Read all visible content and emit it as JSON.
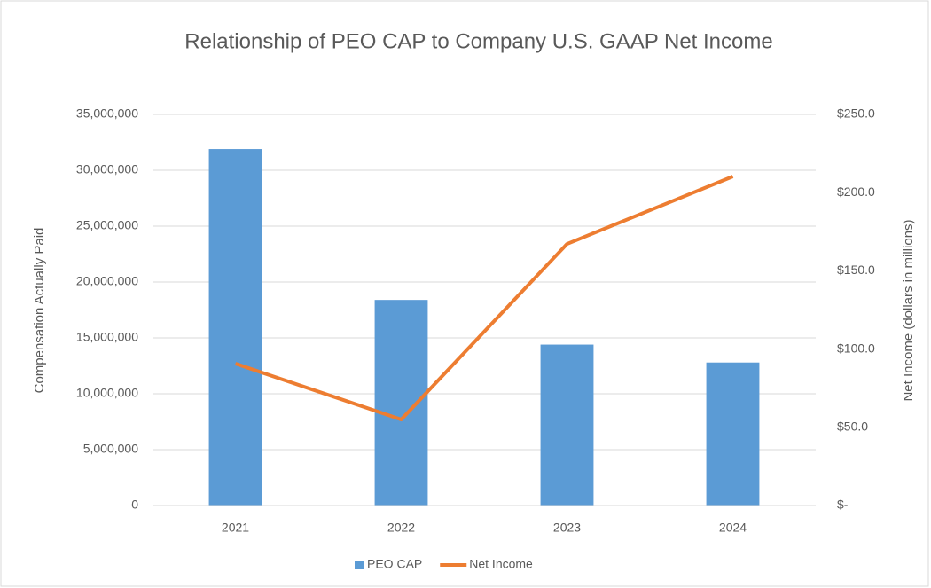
{
  "chart_data": {
    "type": "bar-line",
    "title": "Relationship of PEO CAP to Company U.S. GAAP Net Income",
    "y_label": "Compensation Actually Paid",
    "y2_label": "Net Income (dollars in millions)",
    "categories": [
      "2021",
      "2022",
      "2023",
      "2024"
    ],
    "series": [
      {
        "name": "PEO CAP",
        "type": "bar",
        "color": "#5b9bd5",
        "values": [
          31900000,
          18400000,
          14400000,
          12800000
        ]
      },
      {
        "name": "Net Income",
        "type": "line",
        "axis": "y2",
        "color": "#ed7d31",
        "values": [
          90.7,
          55.0,
          167.2,
          210.3
        ]
      }
    ],
    "ylim": [
      0,
      35000000
    ],
    "yticks": [
      0,
      {
        "value": 5000000,
        "label": "5,000,000"
      },
      {
        "value": 10000000,
        "label": "10,000,000"
      },
      {
        "value": 15000000,
        "label": "15,000,000"
      },
      {
        "value": 20000000,
        "label": "20,000,000"
      },
      {
        "value": 25000000,
        "label": "25,000,000"
      },
      {
        "value": 30000000,
        "label": "30,000,000"
      },
      {
        "value": 35000000,
        "label": "35,000,000"
      }
    ],
    "y2lim": [
      0,
      250
    ],
    "y2ticks": [
      {
        "value": 0,
        "label": "$-"
      },
      {
        "value": 50,
        "label": "$50.0"
      },
      {
        "value": 100,
        "label": "$100.0"
      },
      {
        "value": 150,
        "label": "$150.0"
      },
      {
        "value": 200,
        "label": "$200.0"
      },
      {
        "value": 250,
        "label": "$250.0"
      }
    ],
    "grid": true,
    "legend": "bottom"
  }
}
